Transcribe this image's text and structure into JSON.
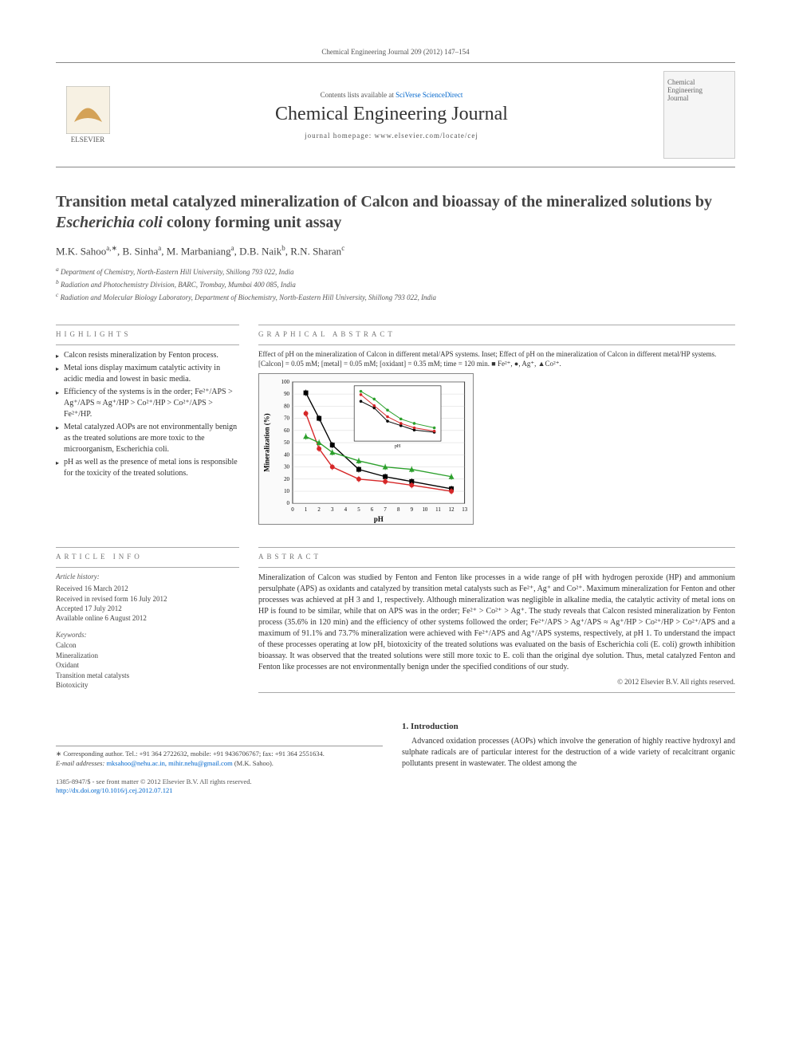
{
  "header": {
    "topline": "Chemical Engineering Journal 209 (2012) 147–154",
    "contents": "Contents lists available at ",
    "contents_link": "SciVerse ScienceDirect",
    "journal": "Chemical Engineering Journal",
    "homepage_label": "journal homepage: ",
    "homepage_url": "www.elsevier.com/locate/cej",
    "publisher": "ELSEVIER",
    "cover_line1": "Chemical",
    "cover_line2": "Engineering",
    "cover_line3": "Journal"
  },
  "title": "Transition metal catalyzed mineralization of Calcon and bioassay of the mineralized solutions by Escherichia coli colony forming unit assay",
  "authors_html": "M.K. Sahoo",
  "author_list": [
    {
      "name": "M.K. Sahoo",
      "sup": "a,∗"
    },
    {
      "name": "B. Sinha",
      "sup": "a"
    },
    {
      "name": "M. Marbaniang",
      "sup": "a"
    },
    {
      "name": "D.B. Naik",
      "sup": "b"
    },
    {
      "name": "R.N. Sharan",
      "sup": "c"
    }
  ],
  "affiliations": [
    {
      "sup": "a",
      "text": "Department of Chemistry, North-Eastern Hill University, Shillong 793 022, India"
    },
    {
      "sup": "b",
      "text": "Radiation and Photochemistry Division, BARC, Trombay, Mumbai 400 085, India"
    },
    {
      "sup": "c",
      "text": "Radiation and Molecular Biology Laboratory, Department of Biochemistry, North-Eastern Hill University, Shillong 793 022, India"
    }
  ],
  "highlights": {
    "label": "HIGHLIGHTS",
    "items": [
      "Calcon resists mineralization by Fenton process.",
      "Metal ions display maximum catalytic activity in acidic media and lowest in basic media.",
      "Efficiency of the systems is in the order; Fe²⁺/APS > Ag⁺/APS ≈ Ag⁺/HP > Co²⁺/HP > Co²⁺/APS > Fe²⁺/HP.",
      "Metal catalyzed AOPs are not environmentally benign as the treated solutions are more toxic to the microorganism, Escherichia coli.",
      "pH as well as the presence of metal ions is responsible for the toxicity of the treated solutions."
    ]
  },
  "graphical_abstract": {
    "label": "GRAPHICAL ABSTRACT",
    "caption": "Effect of pH on the mineralization of Calcon in different metal/APS systems. Inset; Effect of pH on the mineralization of Calcon in different metal/HP systems. [Calcon] = 0.05 mM; [metal] = 0.05 mM; [oxidant] = 0.35 mM; time = 120 min. ■ Fe²⁺, ●, Ag⁺, ▲Co²⁺.",
    "chart": {
      "type": "line",
      "xlabel": "pH",
      "ylabel": "Mineralization (%)",
      "xlim": [
        0,
        13
      ],
      "ylim": [
        0,
        100
      ],
      "xtick_step": 1,
      "ytick_step": 10,
      "background_color": "#ffffff",
      "grid_color": "#cccccc",
      "axis_color": "#000000",
      "label_fontsize": 9,
      "tick_fontsize": 7,
      "series": [
        {
          "name": "Fe2+",
          "color": "#000000",
          "marker": "square",
          "x": [
            1,
            2,
            3,
            5,
            7,
            9,
            12
          ],
          "y": [
            91,
            70,
            48,
            28,
            22,
            18,
            12
          ]
        },
        {
          "name": "Ag+",
          "color": "#d62728",
          "marker": "circle",
          "x": [
            1,
            2,
            3,
            5,
            7,
            9,
            12
          ],
          "y": [
            74,
            45,
            30,
            20,
            18,
            15,
            10
          ]
        },
        {
          "name": "Co2+",
          "color": "#2ca02c",
          "marker": "triangle",
          "x": [
            1,
            2,
            3,
            5,
            7,
            9,
            12
          ],
          "y": [
            55,
            50,
            42,
            35,
            30,
            28,
            22
          ]
        }
      ],
      "inset": {
        "xlim": [
          0,
          13
        ],
        "ylim": [
          0,
          50
        ],
        "series": [
          {
            "color": "#000000",
            "x": [
              1,
              3,
              5,
              7,
              9,
              12
            ],
            "y": [
              36,
              30,
              18,
              14,
              10,
              8
            ]
          },
          {
            "color": "#d62728",
            "x": [
              1,
              3,
              5,
              7,
              9,
              12
            ],
            "y": [
              42,
              32,
              22,
              16,
              12,
              9
            ]
          },
          {
            "color": "#2ca02c",
            "x": [
              1,
              3,
              5,
              7,
              9,
              12
            ],
            "y": [
              45,
              38,
              28,
              20,
              16,
              12
            ]
          }
        ]
      }
    }
  },
  "article_info": {
    "label": "ARTICLE INFO",
    "history_label": "Article history:",
    "history": [
      "Received 16 March 2012",
      "Received in revised form 16 July 2012",
      "Accepted 17 July 2012",
      "Available online 6 August 2012"
    ],
    "keywords_label": "Keywords:",
    "keywords": [
      "Calcon",
      "Mineralization",
      "Oxidant",
      "Transition metal catalysts",
      "Biotoxicity"
    ]
  },
  "abstract": {
    "label": "ABSTRACT",
    "text": "Mineralization of Calcon was studied by Fenton and Fenton like processes in a wide range of pH with hydrogen peroxide (HP) and ammonium persulphate (APS) as oxidants and catalyzed by transition metal catalysts such as Fe²⁺, Ag⁺ and Co²⁺. Maximum mineralization for Fenton and other processes was achieved at pH 3 and 1, respectively. Although mineralization was negligible in alkaline media, the catalytic activity of metal ions on HP is found to be similar, while that on APS was in the order; Fe²⁺ > Co²⁺ > Ag⁺. The study reveals that Calcon resisted mineralization by Fenton process (35.6% in 120 min) and the efficiency of other systems followed the order; Fe²⁺/APS > Ag⁺/APS ≈ Ag⁺/HP > Co²⁺/HP > Co²⁺/APS and a maximum of 91.1% and 73.7% mineralization were achieved with Fe²⁺/APS and Ag⁺/APS systems, respectively, at pH 1. To understand the impact of these processes operating at low pH, biotoxicity of the treated solutions was evaluated on the basis of Escherichia coli (E. coli) growth inhibition bioassay. It was observed that the treated solutions were still more toxic to E. coli than the original dye solution. Thus, metal catalyzed Fenton and Fenton like processes are not environmentally benign under the specified conditions of our study.",
    "copyright": "© 2012 Elsevier B.V. All rights reserved."
  },
  "introduction": {
    "heading": "1. Introduction",
    "text": "Advanced oxidation processes (AOPs) which involve the generation of highly reactive hydroxyl and sulphate radicals are of particular interest for the destruction of a wide variety of recalcitrant organic pollutants present in wastewater. The oldest among the"
  },
  "corresponding": {
    "label": "∗ Corresponding author. Tel.: +91 364 2722632, mobile: +91 9436706767; fax: +91 364 2551634.",
    "email_label": "E-mail addresses: ",
    "emails": "mksahoo@nehu.ac.in, mihir.nehu@gmail.com",
    "email_owner": " (M.K. Sahoo)."
  },
  "footer": {
    "line1": "1385-8947/$ - see front matter © 2012 Elsevier B.V. All rights reserved.",
    "doi_label": "http://dx.doi.org/",
    "doi": "10.1016/j.cej.2012.07.121"
  }
}
